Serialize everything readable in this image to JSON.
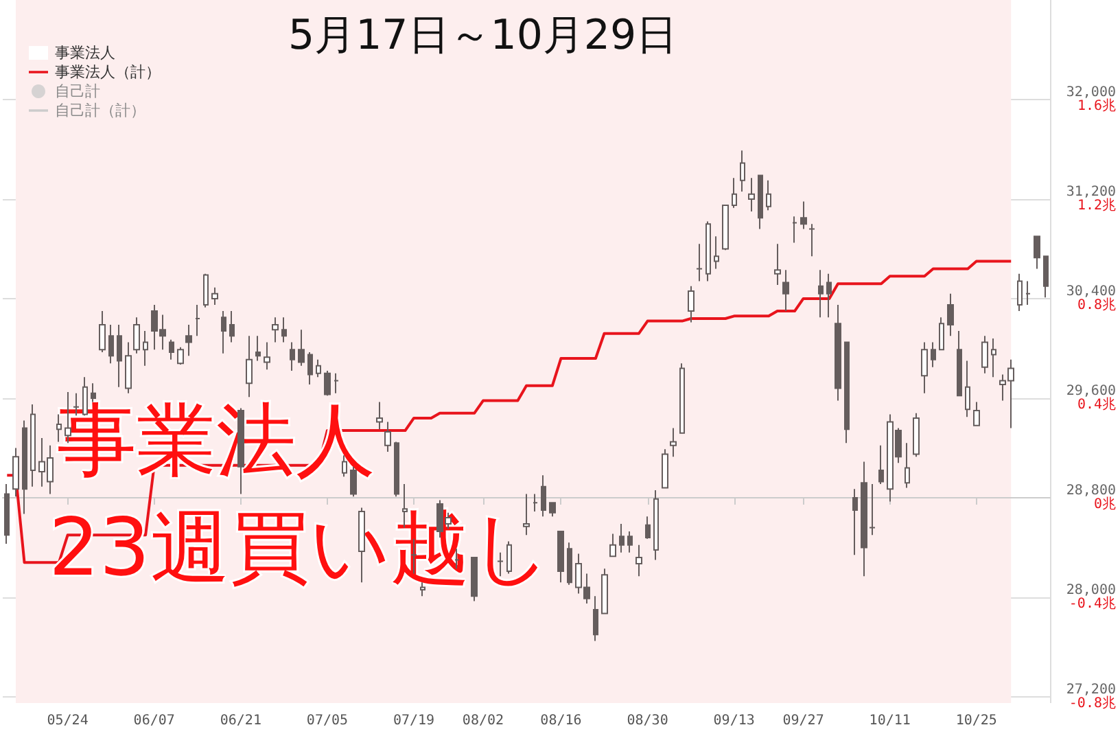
{
  "chart_data": {
    "type": "candlestick",
    "title": "5月17日～10月29日",
    "annotations": [
      "事業法人",
      "23週買い越し"
    ],
    "categories": [
      null,
      null,
      null,
      null,
      null,
      null,
      null,
      "05/24",
      null,
      null,
      null,
      null,
      null,
      null,
      null,
      null,
      null,
      "06/07",
      null,
      null,
      null,
      null,
      null,
      null,
      null,
      null,
      null,
      "06/21",
      null,
      null,
      null,
      null,
      null,
      null,
      null,
      null,
      null,
      "07/05",
      null,
      null,
      null,
      null,
      null,
      null,
      null,
      null,
      null,
      "07/19",
      null,
      null,
      null,
      null,
      null,
      null,
      null,
      "08/02",
      null,
      null,
      null,
      null,
      null,
      null,
      null,
      null,
      "08/16",
      null,
      null,
      null,
      null,
      null,
      null,
      null,
      null,
      null,
      "08/30",
      null,
      null,
      null,
      null,
      null,
      null,
      null,
      null,
      null,
      "09/13",
      null,
      null,
      null,
      null,
      null,
      null,
      null,
      "09/27",
      null,
      null,
      null,
      null,
      null,
      null,
      null,
      null,
      null,
      "10/11",
      null,
      null,
      null,
      null,
      null,
      null,
      null,
      null,
      null,
      "10/25",
      null,
      null,
      null,
      null,
      null,
      null,
      null,
      null
    ],
    "color": "#655d5d",
    "ohlc": [
      [
        28830,
        28910,
        28430,
        28500
      ],
      [
        28870,
        29200,
        28810,
        29130
      ],
      [
        29360,
        29420,
        28670,
        28870
      ],
      [
        29020,
        29550,
        28890,
        29470
      ],
      [
        29010,
        29280,
        28890,
        29090
      ],
      [
        28930,
        29220,
        28830,
        29120
      ],
      [
        29350,
        29470,
        29250,
        29390
      ],
      [
        29300,
        29650,
        29240,
        29360
      ],
      [
        29530,
        29640,
        29460,
        29530
      ],
      [
        29470,
        29770,
        29460,
        29690
      ],
      [
        29640,
        29720,
        29570,
        29600
      ],
      [
        29990,
        30300,
        29970,
        30190
      ],
      [
        30100,
        30190,
        29880,
        29940
      ],
      [
        30100,
        30190,
        29690,
        29900
      ],
      [
        29680,
        30050,
        29640,
        29940
      ],
      [
        29990,
        30250,
        29960,
        30190
      ],
      [
        29990,
        30140,
        29860,
        30050
      ],
      [
        30300,
        30350,
        29990,
        30140
      ],
      [
        30150,
        30270,
        29990,
        30100
      ],
      [
        30050,
        30070,
        29910,
        29970
      ],
      [
        29880,
        30010,
        29870,
        29990
      ],
      [
        30100,
        30190,
        29940,
        30050
      ],
      [
        30240,
        30350,
        30100,
        30240
      ],
      [
        30350,
        30600,
        30330,
        30590
      ],
      [
        30400,
        30490,
        30350,
        30440
      ],
      [
        30250,
        30300,
        29960,
        30140
      ],
      [
        30190,
        30300,
        30050,
        30100
      ],
      [
        29500,
        29520,
        28830,
        29050
      ],
      [
        29720,
        30100,
        29610,
        29910
      ],
      [
        29970,
        30100,
        29900,
        29940
      ],
      [
        29890,
        30050,
        29830,
        29930
      ],
      [
        30150,
        30250,
        30050,
        30190
      ],
      [
        30150,
        30250,
        30050,
        30100
      ],
      [
        29990,
        30050,
        29820,
        29910
      ],
      [
        29990,
        30150,
        29860,
        29890
      ],
      [
        29950,
        29970,
        29710,
        29790
      ],
      [
        29800,
        29910,
        29770,
        29860
      ],
      [
        29800,
        29820,
        29620,
        29630
      ],
      [
        29740,
        29800,
        29640,
        29740
      ],
      [
        29000,
        29140,
        28970,
        29090
      ],
      [
        29020,
        29050,
        28810,
        28830
      ],
      [
        28370,
        28720,
        28120,
        28690
      ],
      null,
      [
        29410,
        29570,
        29350,
        29440
      ],
      [
        29220,
        29410,
        29170,
        29330
      ],
      [
        29240,
        29250,
        28810,
        28830
      ],
      [
        28690,
        28910,
        28560,
        28710
      ],
      [
        28340,
        28470,
        28190,
        28340
      ],
      [
        28060,
        28120,
        28010,
        28080
      ],
      null,
      [
        28750,
        28780,
        28480,
        28530
      ],
      [
        28590,
        28680,
        28550,
        28640
      ],
      [
        28300,
        28390,
        28230,
        28300
      ],
      null,
      [
        28320,
        28320,
        27970,
        28010
      ],
      null,
      null,
      [
        28290,
        28360,
        28170,
        28290
      ],
      [
        28210,
        28450,
        28190,
        28420
      ],
      null,
      [
        28570,
        28830,
        28500,
        28590
      ],
      [
        28760,
        28830,
        28690,
        28760
      ],
      [
        28890,
        28980,
        28650,
        28700
      ],
      [
        28760,
        28760,
        28650,
        28680
      ],
      [
        28530,
        28530,
        28120,
        28210
      ],
      [
        28390,
        28440,
        28100,
        28120
      ],
      [
        28080,
        28350,
        28030,
        28270
      ],
      [
        28080,
        28190,
        27950,
        27990
      ],
      [
        27900,
        28010,
        27650,
        27700
      ],
      [
        27870,
        28230,
        27870,
        28180
      ],
      [
        28330,
        28510,
        28330,
        28420
      ],
      [
        28490,
        28590,
        28360,
        28420
      ],
      [
        28490,
        28530,
        28360,
        28420
      ],
      [
        28270,
        28420,
        28170,
        28320
      ],
      [
        28580,
        28650,
        28470,
        28480
      ],
      [
        28380,
        28860,
        28300,
        28790
      ],
      [
        28880,
        29190,
        28880,
        29150
      ],
      [
        29220,
        29360,
        29130,
        29250
      ],
      [
        29320,
        29880,
        29320,
        29840
      ],
      [
        30300,
        30500,
        30210,
        30460
      ],
      [
        30640,
        30840,
        30540,
        30640
      ],
      [
        30600,
        31020,
        30540,
        31000
      ],
      [
        30700,
        30900,
        30640,
        30740
      ],
      [
        30800,
        31150,
        30790,
        31150
      ],
      [
        31150,
        31370,
        31130,
        31240
      ],
      [
        31350,
        31590,
        31260,
        31490
      ],
      [
        31200,
        31370,
        31100,
        31240
      ],
      [
        31390,
        31390,
        30960,
        31050
      ],
      [
        31140,
        31350,
        31110,
        31240
      ],
      [
        30600,
        30840,
        30510,
        30630
      ],
      [
        30530,
        30630,
        30300,
        30440
      ],
      [
        31010,
        31060,
        30850,
        31010
      ],
      [
        31050,
        31180,
        30960,
        31000
      ],
      [
        30960,
        31000,
        30740,
        30960
      ],
      [
        30500,
        30630,
        30250,
        30440
      ],
      [
        30530,
        30600,
        30250,
        30440
      ],
      [
        30200,
        30350,
        29580,
        29680
      ],
      [
        30050,
        30050,
        29240,
        29350
      ],
      [
        28800,
        28870,
        28340,
        28700
      ],
      [
        28920,
        29090,
        28170,
        28400
      ],
      [
        28560,
        28910,
        28500,
        28560
      ],
      [
        29020,
        29220,
        28910,
        28930
      ],
      [
        28870,
        29470,
        28770,
        29410
      ],
      [
        29340,
        29360,
        29080,
        29130
      ],
      [
        28920,
        29240,
        28880,
        29040
      ],
      [
        29150,
        29480,
        29130,
        29440
      ],
      [
        29780,
        30050,
        29640,
        29990
      ],
      [
        29990,
        30050,
        29850,
        29910
      ],
      [
        29990,
        30250,
        29990,
        30200
      ],
      [
        30350,
        30440,
        30100,
        30190
      ],
      [
        29990,
        30140,
        29620,
        29620
      ],
      [
        29510,
        29900,
        29450,
        29690
      ],
      [
        29380,
        29570,
        29380,
        29500
      ],
      [
        29850,
        30100,
        29800,
        30050
      ],
      [
        29950,
        30080,
        29770,
        29990
      ],
      [
        29710,
        29790,
        29580,
        29740
      ],
      [
        29740,
        29910,
        29360,
        29840
      ],
      [
        30350,
        30600,
        30300,
        30540
      ],
      [
        30440,
        30540,
        30350,
        30440
      ],
      [
        30900,
        30900,
        30640,
        30730
      ],
      [
        30740,
        30740,
        30410,
        30500
      ]
    ],
    "series": [
      {
        "name": "事業法人",
        "type": "bar",
        "color": "#ffffff",
        "values": [
          null,
          null,
          null,
          null,
          null,
          null,
          null,
          null,
          null,
          null,
          null,
          null,
          null,
          null,
          null,
          null,
          null,
          null,
          null,
          null,
          null,
          null,
          null,
          null,
          null,
          null,
          null,
          null,
          null,
          null,
          null,
          null,
          null,
          null,
          null,
          null,
          null,
          null,
          null,
          null,
          null,
          null,
          null,
          null,
          null,
          null,
          null,
          null,
          null,
          null,
          null,
          null,
          null,
          null,
          null,
          null,
          null,
          null,
          null,
          null,
          null,
          null,
          null,
          null,
          null,
          null,
          null,
          null,
          null,
          null,
          null,
          null,
          null,
          null,
          null,
          null,
          null,
          null,
          null,
          null,
          null,
          null,
          null,
          null,
          null,
          null,
          null,
          null,
          null,
          null,
          null,
          null,
          null,
          null,
          null,
          null,
          null,
          null,
          null,
          null,
          null,
          null,
          null,
          null,
          null,
          null,
          null,
          null,
          null,
          null,
          null,
          null,
          null,
          null,
          null,
          null,
          null,
          null,
          null,
          null,
          null
        ]
      },
      {
        "name": "事業法人（計）",
        "type": "line",
        "axis": "y2",
        "color": "#e8141c",
        "values": [
          0.09,
          0.09,
          -0.26,
          -0.26,
          -0.26,
          -0.26,
          -0.26,
          -0.15,
          -0.15,
          -0.15,
          -0.15,
          -0.15,
          -0.15,
          -0.15,
          -0.15,
          -0.15,
          -0.15,
          0.13,
          0.13,
          0.13,
          0.13,
          0.13,
          0.13,
          0.13,
          0.13,
          0.13,
          0.13,
          0.13,
          0.13,
          0.13,
          0.13,
          0.13,
          0.13,
          0.13,
          0.13,
          0.13,
          0.13,
          0.27,
          0.27,
          0.27,
          0.27,
          0.27,
          0.27,
          0.27,
          0.27,
          0.27,
          0.27,
          0.32,
          0.32,
          0.32,
          0.34,
          0.34,
          0.34,
          0.34,
          0.34,
          0.39,
          0.39,
          0.39,
          0.39,
          0.39,
          0.45,
          0.45,
          0.45,
          0.45,
          0.56,
          0.56,
          0.56,
          0.56,
          0.56,
          0.66,
          0.66,
          0.66,
          0.66,
          0.66,
          0.71,
          0.71,
          0.71,
          0.71,
          0.71,
          0.72,
          0.72,
          0.72,
          0.72,
          0.72,
          0.73,
          0.73,
          0.73,
          0.73,
          0.73,
          0.75,
          0.75,
          0.75,
          0.8,
          0.8,
          0.8,
          0.8,
          0.86,
          0.86,
          0.86,
          0.86,
          0.86,
          0.86,
          0.89,
          0.89,
          0.89,
          0.89,
          0.89,
          0.92,
          0.92,
          0.92,
          0.92,
          0.92,
          0.95,
          0.95,
          0.95,
          0.95,
          0.95,
          null,
          null,
          null,
          null
        ]
      },
      {
        "name": "自己計",
        "type": "scatter",
        "color": "#cccccc",
        "values": [
          null,
          null,
          null,
          null,
          null,
          null,
          null,
          null,
          null,
          null,
          null,
          null,
          null,
          null,
          null,
          null,
          null,
          null,
          null,
          null,
          null,
          null,
          null,
          null,
          null,
          null,
          null,
          null,
          null,
          null,
          null,
          null,
          null,
          null,
          null,
          null,
          null,
          null,
          null,
          null,
          null,
          null,
          null,
          null,
          null,
          null,
          null,
          null,
          null,
          null,
          null,
          null,
          null,
          null,
          null,
          null,
          null,
          null,
          null,
          null,
          null,
          null,
          null,
          null,
          null,
          null,
          null,
          null,
          null,
          null,
          null,
          null,
          null,
          null,
          null,
          null,
          null,
          null,
          null,
          null,
          null,
          null,
          null,
          null,
          null,
          null,
          null,
          null,
          null,
          null,
          null,
          null,
          null,
          null,
          null,
          null,
          null,
          null,
          null,
          null,
          null,
          null,
          null,
          null,
          null,
          null,
          null,
          null,
          null,
          null,
          null,
          null,
          null,
          null,
          null,
          null,
          null,
          null,
          null,
          null,
          null
        ]
      },
      {
        "name": "自己計（計）",
        "type": "line",
        "axis": "y2",
        "color": "#cccccc",
        "values": [
          null,
          null,
          null,
          null,
          null,
          null,
          null,
          null,
          null,
          null,
          null,
          null,
          null,
          null,
          null,
          null,
          null,
          null,
          null,
          null,
          null,
          null,
          null,
          null,
          null,
          null,
          null,
          null,
          null,
          null,
          null,
          null,
          null,
          null,
          null,
          null,
          null,
          null,
          null,
          null,
          null,
          null,
          null,
          null,
          null,
          null,
          null,
          null,
          null,
          null,
          null,
          null,
          null,
          null,
          null,
          null,
          null,
          null,
          null,
          null,
          null,
          null,
          null,
          null,
          null,
          null,
          null,
          null,
          null,
          null,
          null,
          null,
          null,
          null,
          null,
          null,
          null,
          null,
          null,
          null,
          null,
          null,
          null,
          null,
          null,
          null,
          null,
          null,
          null,
          null,
          null,
          null,
          null,
          null,
          null,
          null,
          null,
          null,
          null,
          null,
          null,
          null,
          null,
          null,
          null,
          null,
          null,
          null,
          null,
          null,
          null,
          null,
          null,
          null,
          null,
          null,
          null,
          null,
          null,
          null,
          null
        ]
      }
    ],
    "ylim": [
      27150,
      32800
    ],
    "yticks": [
      {
        "value": 27200,
        "label": "27,200"
      },
      {
        "value": 28000,
        "label": "28,000"
      },
      {
        "value": 28800,
        "label": "28,800"
      },
      {
        "value": 29600,
        "label": "29,600"
      },
      {
        "value": 30400,
        "label": "30,400"
      },
      {
        "value": 31200,
        "label": "31,200"
      },
      {
        "value": 32000,
        "label": "32,000"
      }
    ],
    "y2lim": [
      -0.825,
      2.0
    ],
    "y2ticks": [
      {
        "value": -0.8,
        "label": "-0.8兆"
      },
      {
        "value": -0.4,
        "label": "-0.4兆"
      },
      {
        "value": 0,
        "label": "0兆"
      },
      {
        "value": 0.4,
        "label": "0.4兆"
      },
      {
        "value": 0.8,
        "label": "0.8兆"
      },
      {
        "value": 1.2,
        "label": "1.2兆"
      },
      {
        "value": 1.6,
        "label": "1.6兆"
      }
    ],
    "grid": true,
    "legend": "top left"
  }
}
